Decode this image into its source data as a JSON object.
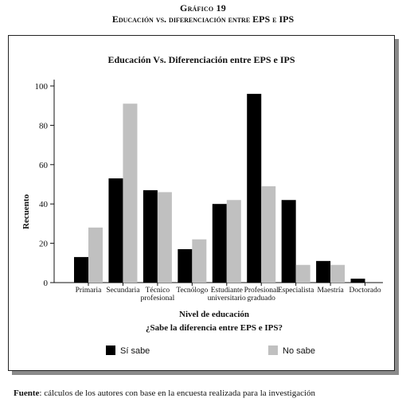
{
  "figure": {
    "label": "Gráfico 19",
    "title": "Educación vs. diferenciación entre EPS e IPS"
  },
  "source": {
    "label": "Fuente",
    "text": ": cálculos de los autores con base en la encuesta realizada para la investigación"
  },
  "chart_data": {
    "type": "bar",
    "title": "Educación Vs. Diferenciación entre EPS e IPS",
    "xlabel": "Nivel de educación",
    "ylabel": "Recuento",
    "legend_title": "¿Sabe la diferencia entre EPS e IPS?",
    "legend_position": "bottom",
    "grid": false,
    "ylim": [
      0,
      100
    ],
    "yticks": [
      0,
      20,
      40,
      60,
      80,
      100
    ],
    "categories": [
      [
        "Primaria"
      ],
      [
        "Secundaria"
      ],
      [
        "Técnico",
        "profesional"
      ],
      [
        "Tecnólogo"
      ],
      [
        "Estudiante",
        "universitario"
      ],
      [
        "Profesional",
        "graduado"
      ],
      [
        "Especialista"
      ],
      [
        "Maestría"
      ],
      [
        "Doctorado"
      ]
    ],
    "series": [
      {
        "name": "Sí sabe",
        "color": "#000000",
        "values": [
          13,
          53,
          47,
          17,
          40,
          96,
          42,
          11,
          2
        ]
      },
      {
        "name": "No sabe",
        "color": "#c0c0c0",
        "values": [
          28,
          91,
          46,
          22,
          42,
          49,
          9,
          9,
          0
        ]
      }
    ]
  }
}
